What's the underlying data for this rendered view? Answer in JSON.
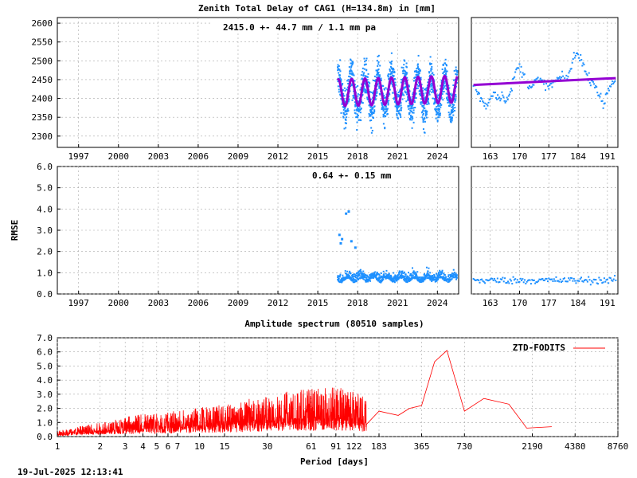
{
  "footer": {
    "timestamp": "19-Jul-2025 12:13:41"
  },
  "chart_data": [
    {
      "type": "scatter",
      "title": "Zenith Total Delay of CAG1 (H=134.8m) in [mm]",
      "annotation": "2415.0 +- 44.7 mm / 1.1 mm pa",
      "ylim": [
        2270,
        2615
      ],
      "ytick_labels": [
        "2300",
        "2350",
        "2400",
        "2450",
        "2500",
        "2550",
        "2600"
      ],
      "xlim": [
        1995.4,
        2025.6
      ],
      "xtick_labels": [
        "1997",
        "2000",
        "2003",
        "2006",
        "2009",
        "2012",
        "2015",
        "2018",
        "2021",
        "2024"
      ],
      "grid": true,
      "series": [
        {
          "color": "#1e90ff",
          "x_range": [
            2016.5,
            2025.5
          ],
          "mean": 2415.0,
          "amplitude": 44.7,
          "noise": 35
        },
        {
          "color": "#9400d3",
          "x_range": [
            2016.5,
            2025.5
          ],
          "mean": 2415.0,
          "amplitude": 44.7,
          "trend_mm_per_year": 1.1
        }
      ]
    },
    {
      "type": "scatter",
      "xlim": [
        158.5,
        193.5
      ],
      "xtick_labels": [
        "163",
        "170",
        "177",
        "184",
        "191"
      ],
      "ylim": [
        2270,
        2615
      ],
      "grid": true,
      "series": [
        {
          "color": "#1e90ff",
          "x": [
            159,
            160,
            161,
            162,
            163,
            164,
            165,
            166,
            167,
            168,
            169,
            170,
            171,
            172,
            173,
            174,
            175,
            176,
            177,
            178,
            179,
            180,
            181,
            182,
            183,
            184,
            185,
            186,
            187,
            188,
            189,
            190,
            191,
            192,
            193
          ],
          "y": [
            2440,
            2415,
            2395,
            2380,
            2400,
            2420,
            2400,
            2410,
            2395,
            2420,
            2470,
            2485,
            2460,
            2440,
            2430,
            2450,
            2445,
            2440,
            2430,
            2440,
            2450,
            2455,
            2450,
            2470,
            2510,
            2520,
            2500,
            2460,
            2450,
            2440,
            2410,
            2380,
            2420,
            2440,
            2450
          ]
        },
        {
          "color": "#9400d3",
          "x": [
            159,
            193
          ],
          "y": [
            2436,
            2454
          ]
        }
      ]
    },
    {
      "type": "scatter",
      "ylabel": "RMSE",
      "annotation": "0.64 +- 0.15 mm",
      "ylim": [
        0,
        6
      ],
      "ytick_labels": [
        "0.0",
        "1.0",
        "2.0",
        "3.0",
        "4.0",
        "5.0",
        "6.0"
      ],
      "xlim": [
        1995.4,
        2025.6
      ],
      "xtick_labels": [
        "1997",
        "2000",
        "2003",
        "2006",
        "2009",
        "2012",
        "2015",
        "2018",
        "2021",
        "2024"
      ],
      "grid": true,
      "series": [
        {
          "color": "#1e90ff",
          "x_range": [
            2016.5,
            2025.5
          ],
          "mean": 0.64,
          "std": 0.15,
          "outliers_x": [
            2016.6,
            2016.8,
            2017.1,
            2017.3,
            2017.5,
            2017.8,
            2016.7
          ],
          "outliers_y": [
            2.8,
            2.6,
            3.8,
            3.9,
            2.5,
            2.2,
            2.4
          ]
        }
      ]
    },
    {
      "type": "scatter",
      "xlim": [
        158.5,
        193.5
      ],
      "xtick_labels": [
        "163",
        "170",
        "177",
        "184",
        "191"
      ],
      "ylim": [
        0,
        6
      ],
      "grid": true,
      "series": [
        {
          "color": "#1e90ff",
          "x_range": [
            159,
            193
          ],
          "mean": 0.64,
          "std": 0.08
        }
      ]
    },
    {
      "type": "line",
      "title": "Amplitude spectrum (80510 samples)",
      "xlabel": "Period [days]",
      "xscale": "log",
      "xlim": [
        1,
        8760
      ],
      "xtick_labels": [
        "1",
        "2",
        "3",
        "4",
        "5",
        "6",
        "7",
        "10",
        "15",
        "30",
        "61",
        "91",
        "122",
        "183",
        "365",
        "730",
        "2190",
        "4380",
        "8760"
      ],
      "xtick_values": [
        1,
        2,
        3,
        4,
        5,
        6,
        7,
        10,
        15,
        30,
        61,
        91,
        122,
        183,
        365,
        730,
        2190,
        4380,
        8760
      ],
      "ylim": [
        0,
        7
      ],
      "ytick_labels": [
        "0.0",
        "1.0",
        "2.0",
        "3.0",
        "4.0",
        "5.0",
        "6.0",
        "7.0"
      ],
      "grid": true,
      "series": [
        {
          "name": "ZTD-FODITS",
          "color": "#ff0000",
          "x": [
            1.0,
            2.0,
            3.0,
            5.0,
            7.0,
            10.0,
            15.0,
            20.0,
            30.0,
            40.0,
            61.0,
            91.0,
            122.0,
            140.0,
            183.0,
            250.0,
            300.0,
            365.0,
            450.0,
            550.0,
            730.0,
            1000.0,
            1500.0,
            2000.0,
            3000.0
          ],
          "y": [
            0.3,
            0.8,
            1.1,
            1.3,
            1.4,
            1.6,
            1.8,
            2.0,
            2.2,
            2.5,
            2.6,
            2.7,
            2.5,
            2.2,
            1.8,
            1.5,
            2.0,
            2.2,
            5.3,
            6.1,
            1.8,
            2.7,
            2.3,
            0.6,
            0.7
          ],
          "noise_amplitude": 1.2
        }
      ]
    }
  ]
}
